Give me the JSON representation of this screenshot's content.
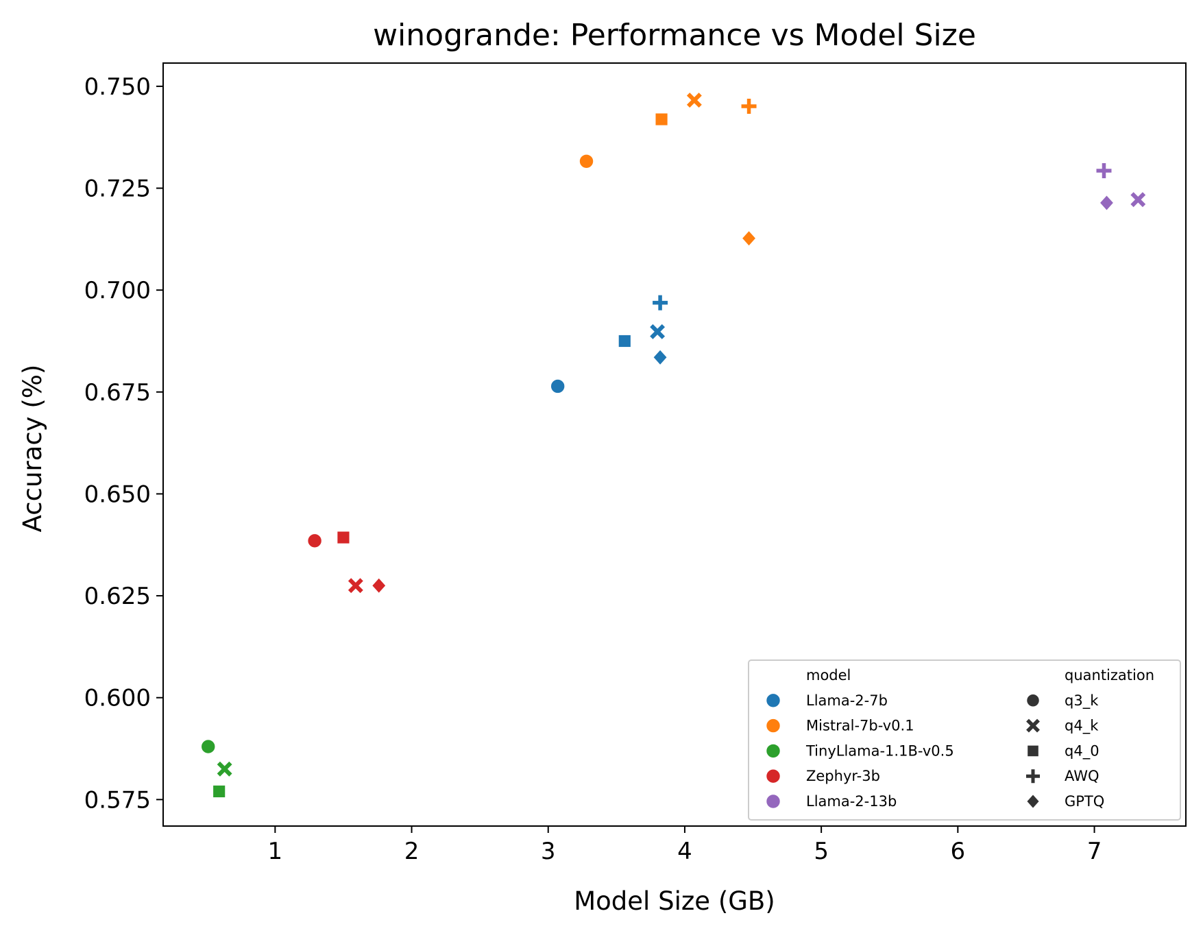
{
  "chart_data": {
    "type": "scatter",
    "title": "winogrande: Performance vs Model Size",
    "xlabel": "Model Size (GB)",
    "ylabel": "Accuracy (%)",
    "xlim": [
      0.18,
      7.67
    ],
    "ylim": [
      0.5685,
      0.7557
    ],
    "x_ticks": [
      1,
      2,
      3,
      4,
      5,
      6,
      7
    ],
    "y_ticks": [
      0.575,
      0.6,
      0.625,
      0.65,
      0.675,
      0.7,
      0.725,
      0.75
    ],
    "x_tick_labels": [
      "1",
      "2",
      "3",
      "4",
      "5",
      "6",
      "7"
    ],
    "y_tick_labels": [
      "0.575",
      "0.600",
      "0.625",
      "0.650",
      "0.675",
      "0.700",
      "0.725",
      "0.750"
    ],
    "grid": false,
    "legend_position": "bottom-right",
    "legend": {
      "model_title": "model",
      "quantization_title": "quantization",
      "models": [
        {
          "name": "Llama-2-7b",
          "color": "#1f77b4"
        },
        {
          "name": "Mistral-7b-v0.1",
          "color": "#ff7f0e"
        },
        {
          "name": "TinyLlama-1.1B-v0.5",
          "color": "#2ca02c"
        },
        {
          "name": "Zephyr-3b",
          "color": "#d62728"
        },
        {
          "name": "Llama-2-13b",
          "color": "#9467bd"
        }
      ],
      "quantizations": [
        {
          "name": "q3_k",
          "marker": "circle"
        },
        {
          "name": "q4_k",
          "marker": "x"
        },
        {
          "name": "q4_0",
          "marker": "square"
        },
        {
          "name": "AWQ",
          "marker": "plus"
        },
        {
          "name": "GPTQ",
          "marker": "diamond"
        }
      ]
    },
    "series": [
      {
        "model": "Llama-2-7b",
        "points": [
          {
            "q": "q3_k",
            "x": 3.07,
            "y": 0.6764
          },
          {
            "q": "q4_0",
            "x": 3.56,
            "y": 0.6875
          },
          {
            "q": "q4_k",
            "x": 3.8,
            "y": 0.6898
          },
          {
            "q": "AWQ",
            "x": 3.82,
            "y": 0.6969
          },
          {
            "q": "GPTQ",
            "x": 3.82,
            "y": 0.6835
          }
        ]
      },
      {
        "model": "Mistral-7b-v0.1",
        "points": [
          {
            "q": "q3_k",
            "x": 3.28,
            "y": 0.7316
          },
          {
            "q": "q4_0",
            "x": 3.83,
            "y": 0.7419
          },
          {
            "q": "q4_k",
            "x": 4.07,
            "y": 0.7466
          },
          {
            "q": "AWQ",
            "x": 4.47,
            "y": 0.7451
          },
          {
            "q": "GPTQ",
            "x": 4.47,
            "y": 0.7127
          }
        ]
      },
      {
        "model": "TinyLlama-1.1B-v0.5",
        "points": [
          {
            "q": "q3_k",
            "x": 0.51,
            "y": 0.588
          },
          {
            "q": "q4_0",
            "x": 0.59,
            "y": 0.577
          },
          {
            "q": "q4_k",
            "x": 0.63,
            "y": 0.5825
          }
        ]
      },
      {
        "model": "Zephyr-3b",
        "points": [
          {
            "q": "q3_k",
            "x": 1.29,
            "y": 0.6385
          },
          {
            "q": "q4_0",
            "x": 1.5,
            "y": 0.6393
          },
          {
            "q": "q4_k",
            "x": 1.59,
            "y": 0.6275
          },
          {
            "q": "GPTQ",
            "x": 1.76,
            "y": 0.6275
          }
        ]
      },
      {
        "model": "Llama-2-13b",
        "points": [
          {
            "q": "AWQ",
            "x": 7.07,
            "y": 0.7293
          },
          {
            "q": "GPTQ",
            "x": 7.09,
            "y": 0.7214
          },
          {
            "q": "q4_k",
            "x": 7.32,
            "y": 0.7222
          }
        ]
      }
    ]
  }
}
